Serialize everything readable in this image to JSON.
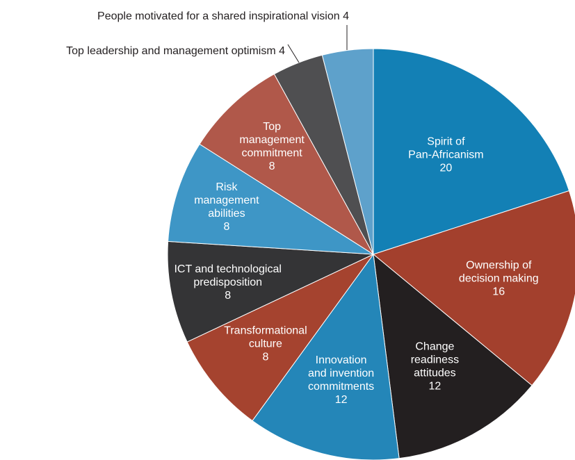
{
  "chart_data": {
    "type": "pie",
    "title": "",
    "slices": [
      {
        "lines": [
          "Spirit of",
          "Pan-Africanism"
        ],
        "value": 20,
        "color": "#1380b5"
      },
      {
        "lines": [
          "Ownership of",
          "decision making"
        ],
        "value": 16,
        "color": "#a3402d"
      },
      {
        "lines": [
          "Change",
          "readiness",
          "attitudes"
        ],
        "value": 12,
        "color": "#231f20"
      },
      {
        "lines": [
          "Innovation",
          "and invention",
          "commitments"
        ],
        "value": 12,
        "color": "#2486b8"
      },
      {
        "lines": [
          "Transformational",
          "culture"
        ],
        "value": 8,
        "color": "#a5432f"
      },
      {
        "lines": [
          "ICT and technological",
          "predisposition"
        ],
        "value": 8,
        "color": "#343436"
      },
      {
        "lines": [
          "Risk",
          "management",
          "abilities"
        ],
        "value": 8,
        "color": "#3e96c6"
      },
      {
        "lines": [
          "Top",
          "management",
          "commitment"
        ],
        "value": 8,
        "color": "#b0584a"
      },
      {
        "lines": [
          "Top leadership and management optimism"
        ],
        "value": 4,
        "color": "#4f4f51"
      },
      {
        "lines": [
          "People motivated for a shared inspirational vision"
        ],
        "value": 4,
        "color": "#5ea1cb"
      }
    ]
  }
}
